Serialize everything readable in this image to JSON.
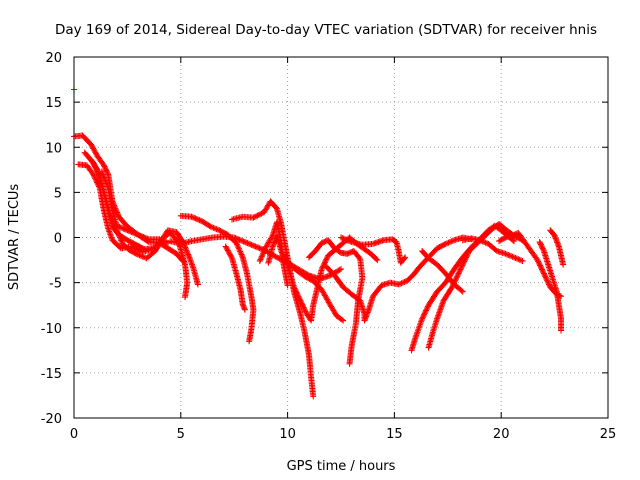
{
  "chart_data": {
    "type": "scatter",
    "title": "Day 169 of 2014, Sidereal Day-to-day VTEC variation (SDTVAR) for receiver hnis",
    "xlabel": "GPS time / hours",
    "ylabel": "SDTVAR / TECUs",
    "xlim": [
      0,
      25
    ],
    "ylim": [
      -20,
      20
    ],
    "xticks": [
      0,
      5,
      10,
      15,
      20,
      25
    ],
    "yticks": [
      -20,
      -15,
      -10,
      -5,
      0,
      5,
      10,
      15,
      20
    ],
    "grid": true,
    "marker": "+",
    "color": "#ff0000",
    "series": [
      {
        "name": "trace-1",
        "points": [
          [
            0,
            16.4
          ]
        ]
      },
      {
        "name": "trace-2",
        "points": [
          [
            0,
            11.2
          ],
          [
            0.4,
            11.3
          ],
          [
            0.8,
            10.3
          ],
          [
            1.1,
            9
          ],
          [
            1.4,
            8
          ],
          [
            1.6,
            7
          ],
          [
            1.8,
            4
          ],
          [
            2.1,
            2.3
          ],
          [
            2.5,
            1.2
          ],
          [
            3,
            0.3
          ],
          [
            3.5,
            -0.5
          ],
          [
            4,
            -0.6
          ],
          [
            4.4,
            -1.2
          ],
          [
            4.8,
            -1.8
          ],
          [
            5.1,
            -2.6
          ]
        ]
      },
      {
        "name": "trace-3",
        "points": [
          [
            0.2,
            8.1
          ],
          [
            0.6,
            8
          ],
          [
            0.9,
            7
          ],
          [
            1.2,
            5.5
          ],
          [
            1.4,
            3
          ],
          [
            1.6,
            1
          ],
          [
            1.8,
            -0.3
          ],
          [
            2.2,
            -1.2
          ],
          [
            2.7,
            -1
          ],
          [
            3.2,
            -1.6
          ],
          [
            3.7,
            -1.3
          ],
          [
            4.1,
            -0.3
          ],
          [
            4.4,
            0.8
          ],
          [
            4.8,
            0.6
          ],
          [
            5.1,
            -0.5
          ],
          [
            5.4,
            -2.2
          ],
          [
            5.6,
            -3.5
          ],
          [
            5.8,
            -5.2
          ]
        ]
      },
      {
        "name": "trace-4",
        "points": [
          [
            0.5,
            9.4
          ],
          [
            0.9,
            8.3
          ],
          [
            1.2,
            6.8
          ],
          [
            1.4,
            5
          ],
          [
            1.6,
            3
          ],
          [
            1.8,
            1.2
          ],
          [
            2.1,
            0.3
          ],
          [
            2.5,
            -0.3
          ],
          [
            2.9,
            -0.8
          ],
          [
            3.3,
            -1.3
          ],
          [
            3.7,
            -1.2
          ]
        ]
      },
      {
        "name": "trace-5",
        "points": [
          [
            0.8,
            8.6
          ],
          [
            1.1,
            7.5
          ],
          [
            1.4,
            5
          ],
          [
            1.7,
            2.5
          ],
          [
            2,
            0.8
          ],
          [
            2.3,
            -0.8
          ],
          [
            2.6,
            -1.4
          ],
          [
            3,
            -1.9
          ],
          [
            3.4,
            -2.3
          ],
          [
            3.8,
            -1.5
          ],
          [
            4.2,
            0
          ],
          [
            4.5,
            0.5
          ],
          [
            4.9,
            -0.5
          ],
          [
            5.2,
            -3
          ],
          [
            5.3,
            -5
          ],
          [
            5.2,
            -6.6
          ]
        ]
      },
      {
        "name": "trace-6",
        "points": [
          [
            1.3,
            7.3
          ],
          [
            1.6,
            5.5
          ],
          [
            1.8,
            3
          ],
          [
            2,
            1.3
          ],
          [
            2.5,
            0.8
          ],
          [
            3,
            0.3
          ],
          [
            3.5,
            -0.2
          ],
          [
            4,
            -0.2
          ],
          [
            4.4,
            -0.6
          ]
        ]
      },
      {
        "name": "trace-7",
        "points": [
          [
            4.5,
            -0.4
          ],
          [
            5,
            -0.7
          ],
          [
            5.5,
            -0.4
          ],
          [
            6,
            -0.2
          ],
          [
            6.5,
            0
          ],
          [
            7,
            0.1
          ],
          [
            7.5,
            0
          ],
          [
            8,
            -0.5
          ],
          [
            8.5,
            -1
          ],
          [
            9,
            -1.5
          ],
          [
            9.5,
            -2.2
          ],
          [
            10,
            -2.8
          ],
          [
            10.5,
            -3.5
          ],
          [
            11,
            -4.2
          ],
          [
            11.5,
            -4.6
          ],
          [
            12,
            -4.2
          ],
          [
            12.5,
            -3.5
          ]
        ]
      },
      {
        "name": "trace-8",
        "points": [
          [
            5,
            2.4
          ],
          [
            5.5,
            2.3
          ],
          [
            6,
            1.8
          ],
          [
            6.4,
            1.2
          ],
          [
            6.8,
            0.8
          ],
          [
            7.2,
            0.3
          ],
          [
            7.6,
            -0.6
          ],
          [
            7.9,
            -2.2
          ],
          [
            8.1,
            -4
          ],
          [
            8.3,
            -6.5
          ],
          [
            8.4,
            -8
          ],
          [
            8.3,
            -10.2
          ],
          [
            8.2,
            -11.5
          ]
        ]
      },
      {
        "name": "trace-9",
        "points": [
          [
            7.1,
            -1
          ],
          [
            7.4,
            -2.3
          ],
          [
            7.6,
            -4
          ],
          [
            7.8,
            -5.8
          ],
          [
            7.9,
            -7.4
          ],
          [
            8,
            -8
          ]
        ]
      },
      {
        "name": "trace-10",
        "points": [
          [
            7.4,
            2
          ],
          [
            7.9,
            2.3
          ],
          [
            8.4,
            2.2
          ],
          [
            8.9,
            2.8
          ],
          [
            9.2,
            4
          ],
          [
            9.5,
            3.2
          ],
          [
            9.7,
            1.5
          ],
          [
            9.9,
            -1
          ],
          [
            10.1,
            -3.5
          ],
          [
            10.3,
            -6
          ],
          [
            10.6,
            -8.5
          ],
          [
            10.8,
            -10.5
          ],
          [
            11,
            -13
          ],
          [
            11.1,
            -15.5
          ],
          [
            11.2,
            -17.6
          ]
        ]
      },
      {
        "name": "trace-11",
        "points": [
          [
            8.7,
            -2.6
          ],
          [
            9,
            -1
          ],
          [
            9.3,
            0.2
          ],
          [
            9.5,
            1.7
          ],
          [
            9.7,
            -0.5
          ],
          [
            9.8,
            -2.8
          ],
          [
            10,
            -5.3
          ]
        ]
      },
      {
        "name": "trace-12",
        "points": [
          [
            9.1,
            -2.8
          ],
          [
            9.3,
            -1
          ],
          [
            9.5,
            0.2
          ],
          [
            9.7,
            -1.5
          ],
          [
            10,
            -3
          ],
          [
            10.3,
            -5.5
          ],
          [
            10.6,
            -7
          ],
          [
            10.9,
            -8.5
          ],
          [
            11.1,
            -9.2
          ],
          [
            11.2,
            -7.5
          ],
          [
            11.4,
            -5.5
          ],
          [
            11.6,
            -3.5
          ],
          [
            11.9,
            -2
          ],
          [
            12.2,
            -1.4
          ],
          [
            12.5,
            -0.8
          ],
          [
            12.9,
            0
          ],
          [
            13.3,
            -0.8
          ],
          [
            13.6,
            -1.3
          ],
          [
            13.9,
            -1.8
          ],
          [
            14.2,
            -2.5
          ]
        ]
      },
      {
        "name": "trace-13",
        "points": [
          [
            10,
            -2.7
          ],
          [
            10.4,
            -3.6
          ],
          [
            10.8,
            -4.3
          ],
          [
            11.2,
            -4.8
          ],
          [
            11.6,
            -5.8
          ],
          [
            12,
            -7.5
          ],
          [
            12.3,
            -8.7
          ],
          [
            12.6,
            -9.2
          ]
        ]
      },
      {
        "name": "trace-14",
        "points": [
          [
            11,
            -2.2
          ],
          [
            11.3,
            -1.5
          ],
          [
            11.6,
            -0.6
          ],
          [
            11.9,
            -0.3
          ],
          [
            12.2,
            -1.2
          ],
          [
            12.5,
            -1.7
          ],
          [
            12.8,
            -1.8
          ],
          [
            13.1,
            -1.5
          ],
          [
            13.4,
            -2.4
          ],
          [
            13.5,
            -4.5
          ],
          [
            13.3,
            -7
          ],
          [
            13.2,
            -9.5
          ],
          [
            13,
            -12
          ],
          [
            12.9,
            -14
          ]
        ]
      },
      {
        "name": "trace-15",
        "points": [
          [
            11.8,
            -3.2
          ],
          [
            12.2,
            -4.2
          ],
          [
            12.6,
            -5.5
          ],
          [
            13,
            -6.3
          ],
          [
            13.4,
            -7
          ],
          [
            13.6,
            -8.5
          ],
          [
            13.6,
            -9.2
          ],
          [
            13.8,
            -8
          ],
          [
            14,
            -6.5
          ],
          [
            14.4,
            -5.3
          ],
          [
            14.8,
            -5
          ],
          [
            15.2,
            -5.2
          ],
          [
            15.6,
            -4.8
          ],
          [
            15.9,
            -4.1
          ],
          [
            16.2,
            -3.2
          ],
          [
            16.6,
            -2.2
          ],
          [
            17,
            -1.2
          ],
          [
            17.4,
            -0.7
          ],
          [
            17.8,
            -0.3
          ],
          [
            18.2,
            0
          ],
          [
            18.6,
            -0.2
          ]
        ]
      },
      {
        "name": "trace-16",
        "points": [
          [
            12.5,
            0
          ],
          [
            13,
            -0.5
          ],
          [
            13.5,
            -0.8
          ],
          [
            14,
            -0.7
          ],
          [
            14.5,
            -0.3
          ],
          [
            14.9,
            -0.2
          ],
          [
            15.1,
            -0.5
          ],
          [
            15.2,
            -1.5
          ],
          [
            15.3,
            -2.8
          ],
          [
            15.5,
            -2.2
          ]
        ]
      },
      {
        "name": "trace-17",
        "points": [
          [
            15.8,
            -12.5
          ],
          [
            16,
            -11
          ],
          [
            16.3,
            -9
          ],
          [
            16.6,
            -7.5
          ],
          [
            17,
            -6
          ],
          [
            17.4,
            -5
          ],
          [
            17.8,
            -3.5
          ],
          [
            18.2,
            -2.2
          ],
          [
            18.6,
            -1.1
          ],
          [
            19,
            -0.2
          ],
          [
            19.4,
            0.8
          ],
          [
            19.7,
            1.3
          ],
          [
            20,
            0.8
          ],
          [
            20.3,
            0.2
          ],
          [
            20.6,
            -0.4
          ]
        ]
      },
      {
        "name": "trace-18",
        "points": [
          [
            16.3,
            -1.5
          ],
          [
            16.6,
            -2.3
          ],
          [
            17,
            -3
          ],
          [
            17.4,
            -4
          ],
          [
            17.8,
            -5.2
          ],
          [
            18.2,
            -6
          ]
        ]
      },
      {
        "name": "trace-19",
        "points": [
          [
            16.6,
            -12.2
          ],
          [
            16.8,
            -10.5
          ],
          [
            17,
            -9
          ],
          [
            17.3,
            -7
          ],
          [
            17.7,
            -5.5
          ],
          [
            18,
            -4
          ],
          [
            18.3,
            -2.5
          ],
          [
            18.5,
            -1.5
          ],
          [
            18.8,
            -0.8
          ],
          [
            19.2,
            0.1
          ],
          [
            19.6,
            1
          ],
          [
            19.9,
            1.5
          ],
          [
            20.2,
            0.9
          ],
          [
            20.6,
            0.2
          ],
          [
            21,
            -0.3
          ]
        ]
      },
      {
        "name": "trace-20",
        "points": [
          [
            18.2,
            -0.3
          ],
          [
            18.6,
            -0.1
          ],
          [
            19,
            -0.3
          ],
          [
            19.4,
            -0.7
          ],
          [
            19.8,
            -1.5
          ],
          [
            20.2,
            -1.8
          ],
          [
            20.6,
            -2.2
          ],
          [
            21,
            -2.6
          ]
        ]
      },
      {
        "name": "trace-21",
        "points": [
          [
            19.9,
            -0.4
          ],
          [
            20.2,
            0
          ],
          [
            20.5,
            0.2
          ],
          [
            20.8,
            0.5
          ],
          [
            21.1,
            -0.5
          ],
          [
            21.4,
            -1.5
          ],
          [
            21.7,
            -2.5
          ],
          [
            22,
            -4
          ],
          [
            22.3,
            -5.5
          ],
          [
            22.6,
            -6.3
          ],
          [
            22.8,
            -6.5
          ]
        ]
      },
      {
        "name": "trace-22",
        "points": [
          [
            21.8,
            -0.5
          ],
          [
            22,
            -1.5
          ],
          [
            22.2,
            -3
          ],
          [
            22.4,
            -4.5
          ],
          [
            22.6,
            -6
          ],
          [
            22.7,
            -7.5
          ],
          [
            22.8,
            -9
          ],
          [
            22.8,
            -10.3
          ]
        ]
      },
      {
        "name": "trace-23",
        "points": [
          [
            22.3,
            0.8
          ],
          [
            22.5,
            0.2
          ],
          [
            22.7,
            -1
          ],
          [
            22.8,
            -2
          ],
          [
            22.9,
            -3
          ]
        ]
      }
    ]
  }
}
